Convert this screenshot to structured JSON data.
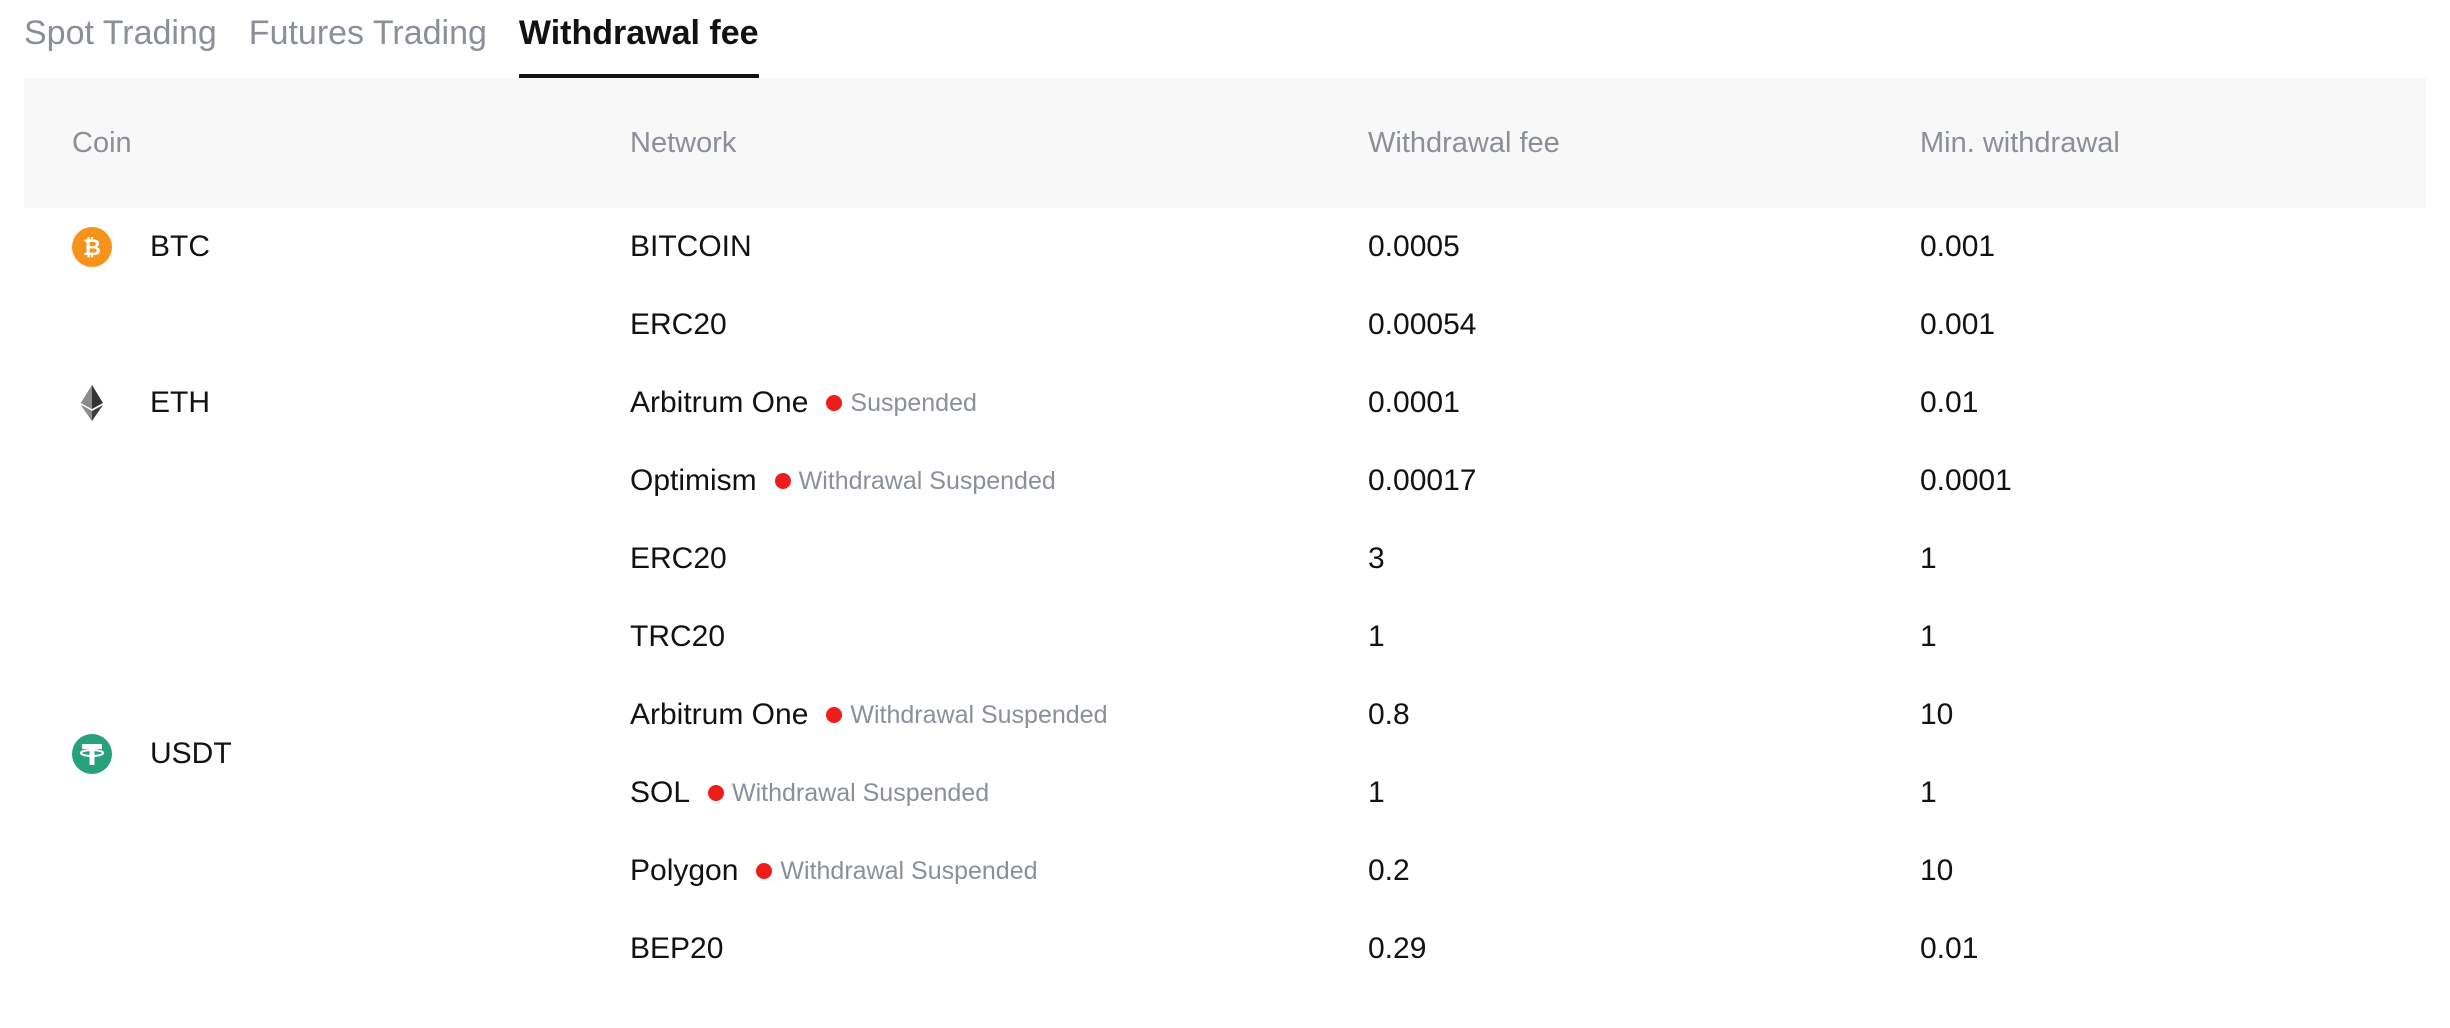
{
  "tabs": [
    {
      "label": "Spot Trading",
      "active": false
    },
    {
      "label": "Futures Trading",
      "active": false
    },
    {
      "label": "Withdrawal fee",
      "active": true
    }
  ],
  "table": {
    "headers": {
      "coin": "Coin",
      "network": "Network",
      "fee": "Withdrawal fee",
      "min": "Min. withdrawal"
    },
    "coins": [
      {
        "symbol": "BTC",
        "icon": "bitcoin-icon",
        "color": "#f7931a"
      },
      {
        "symbol": "ETH",
        "icon": "ethereum-icon",
        "color": "#343434"
      },
      {
        "symbol": "USDT",
        "icon": "tether-icon",
        "color": "#26a17b"
      }
    ],
    "rows": [
      {
        "network": "BITCOIN",
        "status": "",
        "fee": "0.0005",
        "min": "0.001"
      },
      {
        "network": "ERC20",
        "status": "",
        "fee": "0.00054",
        "min": "0.001"
      },
      {
        "network": "Arbitrum One",
        "status": "Suspended",
        "fee": "0.0001",
        "min": "0.01"
      },
      {
        "network": "Optimism",
        "status": "Withdrawal Suspended",
        "fee": "0.00017",
        "min": "0.0001"
      },
      {
        "network": "ERC20",
        "status": "",
        "fee": "3",
        "min": "1"
      },
      {
        "network": "TRC20",
        "status": "",
        "fee": "1",
        "min": "1"
      },
      {
        "network": "Arbitrum One",
        "status": "Withdrawal Suspended",
        "fee": "0.8",
        "min": "10"
      },
      {
        "network": "SOL",
        "status": "Withdrawal Suspended",
        "fee": "1",
        "min": "1"
      },
      {
        "network": "Polygon",
        "status": "Withdrawal Suspended",
        "fee": "0.2",
        "min": "10"
      },
      {
        "network": "BEP20",
        "status": "",
        "fee": "0.29",
        "min": "0.01"
      }
    ]
  },
  "colors": {
    "suspended_dot": "#f01c1c",
    "header_bg": "#f8f8f8",
    "muted_text": "#8a8f98"
  }
}
